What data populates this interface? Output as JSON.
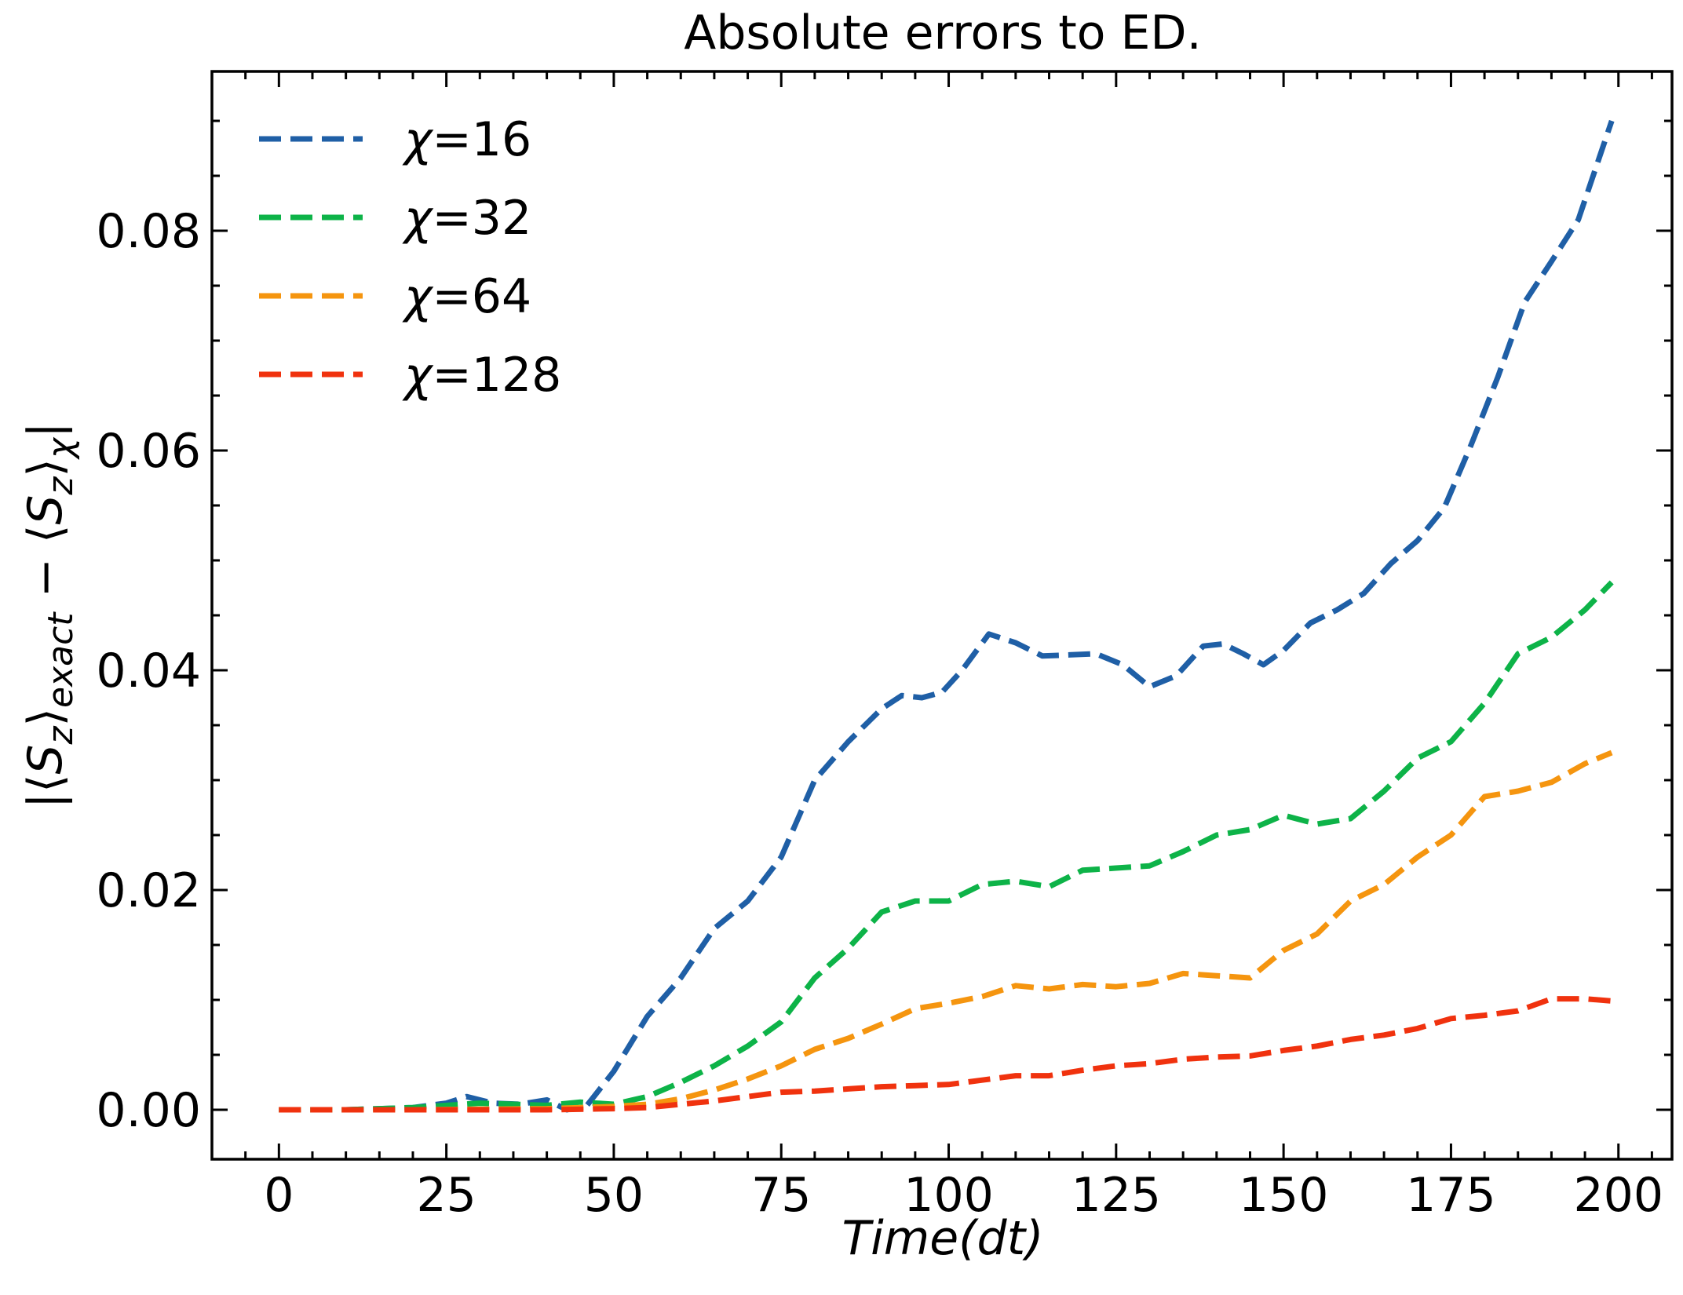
{
  "chart_data": {
    "type": "line",
    "title": "Absolute errors to ED.",
    "xlabel": "Time(dt)",
    "ylabel": "|⟨S_z⟩_exact − ⟨S_z⟩_χ|",
    "xlim": [
      -10,
      208
    ],
    "ylim": [
      -0.0045,
      0.0945
    ],
    "xticks": [
      0,
      25,
      50,
      75,
      100,
      125,
      150,
      175,
      200
    ],
    "xtick_labels": [
      "0",
      "25",
      "50",
      "75",
      "100",
      "125",
      "150",
      "175",
      "200"
    ],
    "yticks": [
      0.0,
      0.02,
      0.04,
      0.06,
      0.08
    ],
    "ytick_labels": [
      "0.00",
      "0.02",
      "0.04",
      "0.06",
      "0.08"
    ],
    "grid": false,
    "legend_position": "top-left",
    "line_style": "dashed",
    "series": [
      {
        "name": "χ=16",
        "color": "#1f5fa6",
        "x": [
          0,
          10,
          20,
          25,
          28,
          32,
          36,
          40,
          43,
          46,
          50,
          55,
          60,
          65,
          70,
          75,
          80,
          85,
          90,
          93,
          96,
          99,
          102,
          106,
          110,
          114,
          118,
          122,
          126,
          130,
          134,
          138,
          141,
          144,
          147,
          150,
          154,
          158,
          162,
          166,
          170,
          174,
          178,
          182,
          186,
          190,
          194,
          199
        ],
        "y": [
          0.0,
          0.0,
          0.0002,
          0.0006,
          0.0012,
          0.0006,
          0.0005,
          0.0009,
          0.0,
          0.0004,
          0.0035,
          0.0085,
          0.012,
          0.0165,
          0.019,
          0.023,
          0.03,
          0.0335,
          0.0365,
          0.0377,
          0.0375,
          0.038,
          0.04,
          0.0433,
          0.0425,
          0.0413,
          0.0414,
          0.0415,
          0.0405,
          0.0385,
          0.0395,
          0.0422,
          0.0424,
          0.0415,
          0.0405,
          0.0418,
          0.0443,
          0.0455,
          0.047,
          0.0497,
          0.0518,
          0.0548,
          0.0605,
          0.0667,
          0.0735,
          0.0772,
          0.081,
          0.09
        ]
      },
      {
        "name": "χ=32",
        "color": "#0db348",
        "x": [
          0,
          10,
          20,
          30,
          40,
          45,
          50,
          55,
          60,
          65,
          70,
          75,
          80,
          85,
          90,
          95,
          100,
          105,
          110,
          115,
          120,
          125,
          130,
          135,
          140,
          145,
          150,
          155,
          160,
          165,
          170,
          175,
          180,
          185,
          190,
          195,
          199
        ],
        "y": [
          0.0,
          0.0,
          0.0002,
          0.0006,
          0.0004,
          0.0007,
          0.0005,
          0.0012,
          0.0025,
          0.004,
          0.0058,
          0.008,
          0.012,
          0.0147,
          0.018,
          0.019,
          0.019,
          0.0205,
          0.0208,
          0.0203,
          0.0218,
          0.022,
          0.0222,
          0.0235,
          0.025,
          0.0255,
          0.0268,
          0.026,
          0.0265,
          0.029,
          0.032,
          0.0335,
          0.037,
          0.0415,
          0.043,
          0.0455,
          0.048
        ]
      },
      {
        "name": "χ=64",
        "color": "#f5950f",
        "x": [
          0,
          20,
          40,
          50,
          55,
          60,
          65,
          70,
          75,
          80,
          85,
          90,
          95,
          100,
          105,
          110,
          115,
          120,
          125,
          130,
          135,
          140,
          145,
          150,
          155,
          160,
          165,
          170,
          175,
          180,
          185,
          190,
          195,
          199
        ],
        "y": [
          0.0,
          0.0,
          0.0001,
          0.0003,
          0.0005,
          0.001,
          0.0018,
          0.0028,
          0.004,
          0.0055,
          0.0065,
          0.0078,
          0.0092,
          0.0097,
          0.0103,
          0.0113,
          0.011,
          0.0114,
          0.0112,
          0.0115,
          0.0124,
          0.0122,
          0.012,
          0.0145,
          0.016,
          0.019,
          0.0205,
          0.023,
          0.025,
          0.0285,
          0.029,
          0.0298,
          0.0315,
          0.0325
        ]
      },
      {
        "name": "χ=128",
        "color": "#f0320e",
        "x": [
          0,
          20,
          40,
          50,
          55,
          60,
          65,
          70,
          75,
          80,
          85,
          90,
          95,
          100,
          105,
          110,
          115,
          120,
          125,
          130,
          135,
          140,
          145,
          150,
          155,
          160,
          165,
          170,
          175,
          180,
          185,
          190,
          195,
          199
        ],
        "y": [
          0.0,
          0.0,
          0.0,
          0.0001,
          0.0002,
          0.0005,
          0.0008,
          0.0012,
          0.0016,
          0.0017,
          0.0019,
          0.0021,
          0.0022,
          0.0023,
          0.0027,
          0.0031,
          0.0031,
          0.0036,
          0.004,
          0.0042,
          0.0046,
          0.0048,
          0.0049,
          0.0054,
          0.0058,
          0.0064,
          0.0068,
          0.0074,
          0.0083,
          0.0086,
          0.009,
          0.0101,
          0.0101,
          0.0099
        ]
      }
    ]
  }
}
